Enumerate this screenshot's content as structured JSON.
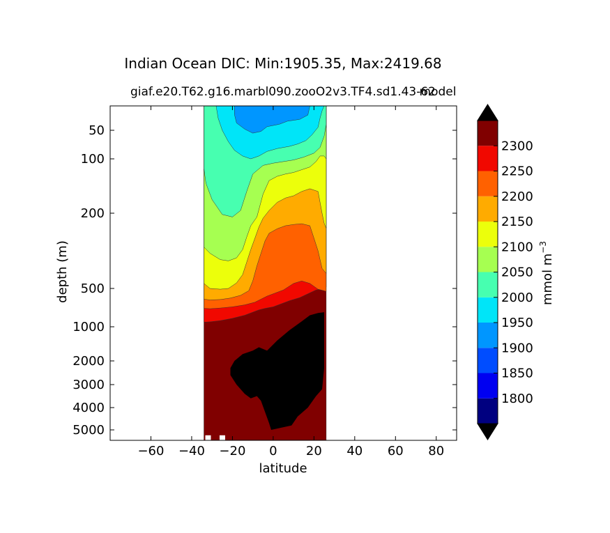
{
  "chart_data": {
    "type": "contour",
    "title": "Indian Ocean DIC: Min:1905.35, Max:2419.68",
    "subtitle": "giaf.e20.T62.g16.marbl090.zooO2v3.TF4.sd1.43-62",
    "subtitle_overlay": "model",
    "xlabel": "latitude",
    "ylabel": "depth (m)",
    "xlim": [
      -80,
      90
    ],
    "x_ticks": [
      -60,
      -40,
      -20,
      0,
      20,
      40,
      60,
      80
    ],
    "x_tick_labels": [
      "−60",
      "−40",
      "−20",
      "0",
      "20",
      "40",
      "60",
      "80"
    ],
    "y_ticks": [
      50,
      100,
      200,
      500,
      1000,
      2000,
      3000,
      4000,
      5000
    ],
    "y_tick_labels": [
      "50",
      "100",
      "200",
      "500",
      "1000",
      "2000",
      "3000",
      "4000",
      "5000"
    ],
    "ocean_lat_range": [
      -34,
      26
    ],
    "colorbar": {
      "label": "mmol m",
      "label_superscript": "−3",
      "levels": [
        1750,
        1800,
        1850,
        1900,
        1950,
        2000,
        2050,
        2100,
        2150,
        2200,
        2250,
        2300,
        2350
      ],
      "tick_labels": [
        "1800",
        "1850",
        "1900",
        "1950",
        "2000",
        "2050",
        "2100",
        "2150",
        "2200",
        "2250",
        "2300"
      ],
      "colors": [
        "#000080",
        "#0000f1",
        "#004dff",
        "#0096ff",
        "#00e5f8",
        "#47ffb0",
        "#a6ff51",
        "#ecff0b",
        "#ffab00",
        "#ff6100",
        "#f10800",
        "#800000"
      ],
      "over_color": "#000000",
      "under_color": "#000000",
      "extend": "both"
    },
    "contours": [
      {
        "level": "1900-1950",
        "color": "#0096ff",
        "boundary": [
          [
            -19,
            10
          ],
          [
            -19,
            24
          ],
          [
            -18,
            38
          ],
          [
            -14,
            48
          ],
          [
            -10,
            55
          ],
          [
            -6,
            52
          ],
          [
            -3,
            44
          ],
          [
            3,
            40
          ],
          [
            7,
            35
          ],
          [
            13,
            32
          ],
          [
            17,
            25
          ],
          [
            18,
            10
          ]
        ]
      },
      {
        "level": "1950-2000",
        "color": "#00e5f8",
        "boundary": [
          [
            -28,
            10
          ],
          [
            -27,
            30
          ],
          [
            -25,
            50
          ],
          [
            -22,
            70
          ],
          [
            -19,
            85
          ],
          [
            -15,
            95
          ],
          [
            -11,
            100
          ],
          [
            -7,
            95
          ],
          [
            -3,
            87
          ],
          [
            2,
            82
          ],
          [
            8,
            78
          ],
          [
            12,
            74
          ],
          [
            16,
            68
          ],
          [
            19,
            58
          ],
          [
            22,
            45
          ],
          [
            23,
            30
          ],
          [
            24,
            18
          ],
          [
            25,
            10
          ]
        ]
      },
      {
        "level": "2000-2050",
        "color": "#47ffb0",
        "boundary": [
          [
            -34,
            10
          ],
          [
            -34,
            118
          ],
          [
            -33,
            145
          ],
          [
            -30,
            175
          ],
          [
            -25,
            205
          ],
          [
            -20,
            215
          ],
          [
            -16,
            195
          ],
          [
            -13,
            160
          ],
          [
            -10,
            128
          ],
          [
            -5,
            112
          ],
          [
            0,
            108
          ],
          [
            5,
            105
          ],
          [
            10,
            102
          ],
          [
            15,
            97
          ],
          [
            20,
            90
          ],
          [
            23,
            80
          ],
          [
            25,
            60
          ],
          [
            26,
            40
          ],
          [
            26,
            10
          ]
        ]
      },
      {
        "level": "2050-2100",
        "color": "#a6ff51",
        "boundary": [
          [
            -34,
            10
          ],
          [
            -34,
            335
          ],
          [
            -31,
            360
          ],
          [
            -26,
            385
          ],
          [
            -22,
            390
          ],
          [
            -18,
            378
          ],
          [
            -15,
            345
          ],
          [
            -13,
            295
          ],
          [
            -11,
            250
          ],
          [
            -8,
            215
          ],
          [
            -5,
            165
          ],
          [
            -2,
            140
          ],
          [
            2,
            132
          ],
          [
            6,
            128
          ],
          [
            10,
            125
          ],
          [
            14,
            120
          ],
          [
            18,
            115
          ],
          [
            21,
            105
          ],
          [
            23,
            95
          ],
          [
            25,
            95
          ],
          [
            26,
            100
          ],
          [
            26,
            10
          ]
        ]
      },
      {
        "level": "2100-2150",
        "color": "#ecff0b",
        "boundary": [
          [
            -34,
            10
          ],
          [
            -34,
            480
          ],
          [
            -31,
            500
          ],
          [
            -26,
            510
          ],
          [
            -22,
            500
          ],
          [
            -18,
            478
          ],
          [
            -15,
            445
          ],
          [
            -13,
            395
          ],
          [
            -11,
            345
          ],
          [
            -9,
            300
          ],
          [
            -7,
            255
          ],
          [
            -5,
            220
          ],
          [
            -2,
            195
          ],
          [
            2,
            180
          ],
          [
            6,
            172
          ],
          [
            10,
            168
          ],
          [
            14,
            160
          ],
          [
            18,
            155
          ],
          [
            22,
            160
          ],
          [
            24,
            200
          ],
          [
            25,
            240
          ],
          [
            26,
            260
          ],
          [
            26,
            10
          ]
        ]
      },
      {
        "level": "2150-2200",
        "color": "#ffab00",
        "boundary": [
          [
            -34,
            10
          ],
          [
            -34,
            640
          ],
          [
            -31,
            650
          ],
          [
            -26,
            645
          ],
          [
            -21,
            625
          ],
          [
            -16,
            590
          ],
          [
            -12,
            530
          ],
          [
            -10,
            470
          ],
          [
            -8,
            410
          ],
          [
            -6,
            360
          ],
          [
            -4,
            310
          ],
          [
            -2,
            280
          ],
          [
            2,
            262
          ],
          [
            6,
            250
          ],
          [
            10,
            245
          ],
          [
            14,
            242
          ],
          [
            18,
            250
          ],
          [
            20,
            300
          ],
          [
            22,
            350
          ],
          [
            24,
            420
          ],
          [
            26,
            440
          ],
          [
            26,
            10
          ]
        ]
      },
      {
        "level": "2200-2250",
        "color": "#ff6100",
        "boundary": [
          [
            -34,
            10
          ],
          [
            -34,
            760
          ],
          [
            -31,
            765
          ],
          [
            -26,
            755
          ],
          [
            -20,
            740
          ],
          [
            -14,
            715
          ],
          [
            -9,
            680
          ],
          [
            -6,
            640
          ],
          [
            -3,
            600
          ],
          [
            1,
            560
          ],
          [
            5,
            520
          ],
          [
            10,
            480
          ],
          [
            14,
            470
          ],
          [
            18,
            480
          ],
          [
            22,
            510
          ],
          [
            25,
            530
          ],
          [
            26,
            540
          ],
          [
            26,
            10
          ]
        ]
      },
      {
        "level": "2250-2300",
        "color": "#f10800",
        "boundary": [
          [
            -34,
            10
          ],
          [
            -34,
            940
          ],
          [
            -31,
            935
          ],
          [
            -26,
            920
          ],
          [
            -20,
            890
          ],
          [
            -14,
            850
          ],
          [
            -10,
            810
          ],
          [
            -7,
            780
          ],
          [
            -4,
            760
          ],
          [
            0,
            740
          ],
          [
            4,
            700
          ],
          [
            8,
            660
          ],
          [
            13,
            620
          ],
          [
            17,
            570
          ],
          [
            21,
            520
          ],
          [
            25,
            500
          ],
          [
            26,
            495
          ],
          [
            26,
            10
          ]
        ]
      },
      {
        "level": "2300-2350",
        "color": "#800000",
        "boundary": [
          [
            -34,
            10
          ],
          [
            -34,
            5800
          ],
          [
            -34,
            5800
          ],
          [
            26,
            5800
          ],
          [
            26,
            10
          ]
        ]
      }
    ],
    "over_region": [
      [
        -21,
        2300
      ],
      [
        -19,
        2000
      ],
      [
        -15,
        1800
      ],
      [
        -10,
        1700
      ],
      [
        -7,
        1600
      ],
      [
        -3,
        1700
      ],
      [
        2,
        1400
      ],
      [
        8,
        1100
      ],
      [
        14,
        930
      ],
      [
        18,
        850
      ],
      [
        22,
        820
      ],
      [
        25,
        810
      ],
      [
        25,
        2300
      ],
      [
        24,
        3200
      ],
      [
        21,
        3500
      ],
      [
        17,
        4000
      ],
      [
        12,
        4400
      ],
      [
        9,
        4800
      ],
      [
        -1,
        5000
      ],
      [
        -2,
        4700
      ],
      [
        -4,
        4200
      ],
      [
        -6,
        3700
      ],
      [
        -8,
        3500
      ],
      [
        -11,
        3600
      ],
      [
        -14,
        3400
      ],
      [
        -18,
        3000
      ],
      [
        -21,
        2600
      ]
    ],
    "land_blocks": [
      [
        -34,
        5200
      ],
      [
        -27,
        5200
      ]
    ]
  }
}
